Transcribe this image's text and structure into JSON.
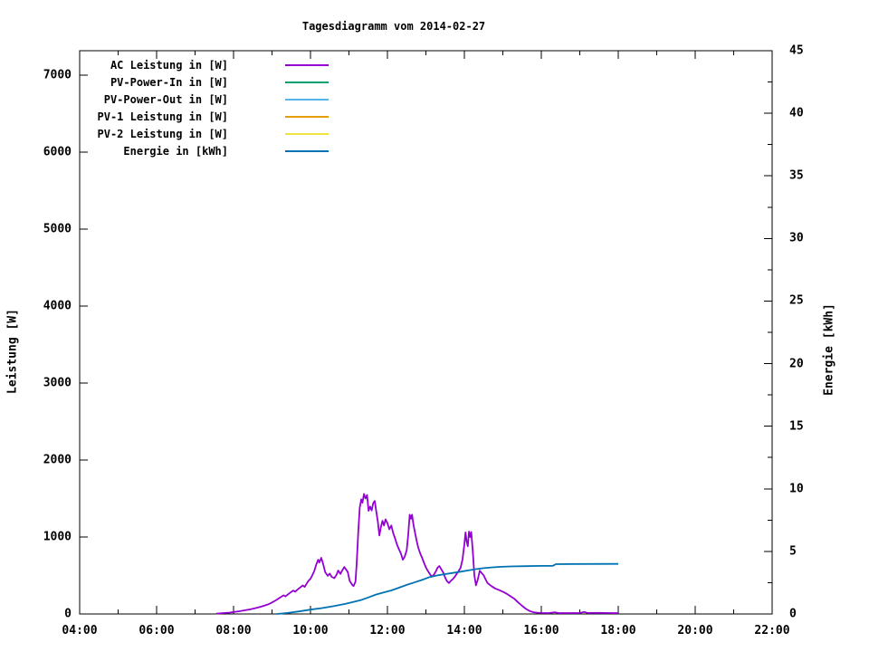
{
  "title": "Tagesdiagramm vom 2014-02-27",
  "axes": {
    "y_left_label": "Leistung [W]",
    "y_right_label": "Energie [kWh]"
  },
  "chart_data": {
    "type": "line",
    "title": "Tagesdiagramm vom 2014-02-27",
    "grid": false,
    "legend_position": "top-left-inside",
    "x_axis": {
      "unit": "time-of-day",
      "min_hour": 4,
      "max_hour": 22,
      "ticks": [
        4,
        6,
        8,
        10,
        12,
        14,
        16,
        18,
        20,
        22
      ],
      "tick_labels": [
        "04:00",
        "06:00",
        "08:00",
        "10:00",
        "12:00",
        "14:00",
        "16:00",
        "18:00",
        "20:00",
        "22:00"
      ],
      "minor_ticks": [
        5,
        7,
        9,
        11,
        13,
        15,
        17,
        19,
        21
      ]
    },
    "y_left": {
      "label": "Leistung [W]",
      "min": 0,
      "ticks": [
        0,
        1000,
        2000,
        3000,
        4000,
        5000,
        6000,
        7000
      ],
      "tick_labels": [
        "0",
        "1000",
        "2000",
        "3000",
        "4000",
        "5000",
        "6000",
        "7000"
      ]
    },
    "y_right": {
      "label": "Energie [kWh]",
      "min": 0,
      "max": 45,
      "ticks": [
        0,
        5,
        10,
        15,
        20,
        25,
        30,
        35,
        40,
        45
      ],
      "tick_labels": [
        "0",
        "5",
        "10",
        "15",
        "20",
        "25",
        "30",
        "35",
        "40",
        "45"
      ],
      "minor_step": 2.5
    },
    "series": [
      {
        "name": "AC Leistung in [W]",
        "color": "#9400d3",
        "axis": "left",
        "visible": true,
        "points": [
          [
            7.55,
            5
          ],
          [
            7.7,
            10
          ],
          [
            7.9,
            18
          ],
          [
            8.0,
            25
          ],
          [
            8.15,
            35
          ],
          [
            8.3,
            48
          ],
          [
            8.45,
            62
          ],
          [
            8.6,
            80
          ],
          [
            8.75,
            100
          ],
          [
            8.9,
            125
          ],
          [
            9.0,
            150
          ],
          [
            9.1,
            178
          ],
          [
            9.2,
            210
          ],
          [
            9.3,
            242
          ],
          [
            9.35,
            228
          ],
          [
            9.45,
            268
          ],
          [
            9.55,
            305
          ],
          [
            9.6,
            290
          ],
          [
            9.7,
            332
          ],
          [
            9.8,
            370
          ],
          [
            9.85,
            352
          ],
          [
            9.9,
            395
          ],
          [
            9.95,
            432
          ],
          [
            10.0,
            458
          ],
          [
            10.05,
            505
          ],
          [
            10.1,
            562
          ],
          [
            10.15,
            645
          ],
          [
            10.2,
            705
          ],
          [
            10.23,
            668
          ],
          [
            10.28,
            730
          ],
          [
            10.33,
            648
          ],
          [
            10.38,
            545
          ],
          [
            10.45,
            495
          ],
          [
            10.5,
            525
          ],
          [
            10.55,
            482
          ],
          [
            10.62,
            465
          ],
          [
            10.68,
            512
          ],
          [
            10.72,
            565
          ],
          [
            10.78,
            520
          ],
          [
            10.82,
            562
          ],
          [
            10.88,
            610
          ],
          [
            10.92,
            580
          ],
          [
            10.97,
            545
          ],
          [
            11.02,
            430
          ],
          [
            11.08,
            382
          ],
          [
            11.12,
            362
          ],
          [
            11.17,
            420
          ],
          [
            11.2,
            650
          ],
          [
            11.24,
            1050
          ],
          [
            11.28,
            1380
          ],
          [
            11.32,
            1490
          ],
          [
            11.35,
            1445
          ],
          [
            11.39,
            1560
          ],
          [
            11.43,
            1500
          ],
          [
            11.47,
            1545
          ],
          [
            11.51,
            1340
          ],
          [
            11.55,
            1395
          ],
          [
            11.59,
            1345
          ],
          [
            11.63,
            1440
          ],
          [
            11.67,
            1468
          ],
          [
            11.71,
            1330
          ],
          [
            11.75,
            1200
          ],
          [
            11.79,
            1020
          ],
          [
            11.83,
            1130
          ],
          [
            11.87,
            1210
          ],
          [
            11.91,
            1150
          ],
          [
            11.95,
            1230
          ],
          [
            12.0,
            1180
          ],
          [
            12.05,
            1100
          ],
          [
            12.1,
            1150
          ],
          [
            12.15,
            1050
          ],
          [
            12.2,
            980
          ],
          [
            12.25,
            900
          ],
          [
            12.3,
            840
          ],
          [
            12.35,
            785
          ],
          [
            12.4,
            705
          ],
          [
            12.45,
            745
          ],
          [
            12.5,
            830
          ],
          [
            12.54,
            1020
          ],
          [
            12.58,
            1290
          ],
          [
            12.61,
            1235
          ],
          [
            12.64,
            1290
          ],
          [
            12.68,
            1150
          ],
          [
            12.72,
            1050
          ],
          [
            12.76,
            950
          ],
          [
            12.8,
            865
          ],
          [
            12.85,
            790
          ],
          [
            12.9,
            730
          ],
          [
            12.95,
            665
          ],
          [
            13.0,
            605
          ],
          [
            13.05,
            560
          ],
          [
            13.1,
            520
          ],
          [
            13.15,
            485
          ],
          [
            13.2,
            505
          ],
          [
            13.25,
            545
          ],
          [
            13.3,
            600
          ],
          [
            13.35,
            622
          ],
          [
            13.4,
            580
          ],
          [
            13.45,
            540
          ],
          [
            13.5,
            472
          ],
          [
            13.55,
            425
          ],
          [
            13.6,
            402
          ],
          [
            13.65,
            432
          ],
          [
            13.7,
            452
          ],
          [
            13.75,
            482
          ],
          [
            13.8,
            520
          ],
          [
            13.85,
            558
          ],
          [
            13.9,
            600
          ],
          [
            13.95,
            705
          ],
          [
            14.0,
            905
          ],
          [
            14.03,
            1060
          ],
          [
            14.06,
            945
          ],
          [
            14.09,
            880
          ],
          [
            14.12,
            1070
          ],
          [
            14.15,
            1000
          ],
          [
            14.18,
            1065
          ],
          [
            14.22,
            800
          ],
          [
            14.26,
            505
          ],
          [
            14.3,
            372
          ],
          [
            14.35,
            452
          ],
          [
            14.4,
            562
          ],
          [
            14.45,
            532
          ],
          [
            14.5,
            502
          ],
          [
            14.55,
            452
          ],
          [
            14.6,
            402
          ],
          [
            14.7,
            362
          ],
          [
            14.8,
            332
          ],
          [
            14.9,
            310
          ],
          [
            15.0,
            290
          ],
          [
            15.1,
            262
          ],
          [
            15.2,
            230
          ],
          [
            15.3,
            196
          ],
          [
            15.4,
            150
          ],
          [
            15.5,
            106
          ],
          [
            15.6,
            66
          ],
          [
            15.7,
            38
          ],
          [
            15.8,
            22
          ],
          [
            15.9,
            16
          ],
          [
            16.0,
            13
          ],
          [
            16.2,
            12
          ],
          [
            16.35,
            22
          ],
          [
            16.45,
            12
          ],
          [
            16.8,
            12
          ],
          [
            17.0,
            13
          ],
          [
            17.12,
            26
          ],
          [
            17.2,
            13
          ],
          [
            17.5,
            14
          ],
          [
            17.8,
            12
          ],
          [
            18.0,
            12
          ]
        ]
      },
      {
        "name": "PV-Power-In in [W]",
        "color": "#009e73",
        "axis": "left",
        "visible": false,
        "points": []
      },
      {
        "name": "PV-Power-Out in [W]",
        "color": "#56b4e9",
        "axis": "left",
        "visible": false,
        "points": []
      },
      {
        "name": "PV-1 Leistung in [W]",
        "color": "#e69f00",
        "axis": "left",
        "visible": false,
        "points": []
      },
      {
        "name": "PV-2 Leistung in [W]",
        "color": "#f0e442",
        "axis": "left",
        "visible": false,
        "points": []
      },
      {
        "name": "Energie in [kWh]",
        "color": "#0072b2",
        "axis": "right",
        "visible": true,
        "points": [
          [
            9.13,
            0.0
          ],
          [
            9.4,
            0.08
          ],
          [
            9.7,
            0.2
          ],
          [
            10.0,
            0.35
          ],
          [
            10.3,
            0.47
          ],
          [
            10.6,
            0.62
          ],
          [
            10.9,
            0.8
          ],
          [
            11.1,
            0.95
          ],
          [
            11.3,
            1.1
          ],
          [
            11.5,
            1.32
          ],
          [
            11.7,
            1.55
          ],
          [
            11.9,
            1.72
          ],
          [
            12.1,
            1.88
          ],
          [
            12.3,
            2.1
          ],
          [
            12.5,
            2.32
          ],
          [
            12.7,
            2.52
          ],
          [
            12.9,
            2.72
          ],
          [
            13.1,
            2.95
          ],
          [
            13.3,
            3.08
          ],
          [
            13.5,
            3.18
          ],
          [
            13.7,
            3.28
          ],
          [
            13.9,
            3.38
          ],
          [
            14.1,
            3.48
          ],
          [
            14.3,
            3.58
          ],
          [
            14.5,
            3.66
          ],
          [
            14.7,
            3.72
          ],
          [
            14.9,
            3.76
          ],
          [
            15.2,
            3.8
          ],
          [
            15.6,
            3.82
          ],
          [
            16.0,
            3.84
          ],
          [
            16.3,
            3.85
          ],
          [
            16.38,
            3.98
          ],
          [
            17.0,
            3.99
          ],
          [
            18.0,
            4.0
          ]
        ]
      }
    ]
  }
}
